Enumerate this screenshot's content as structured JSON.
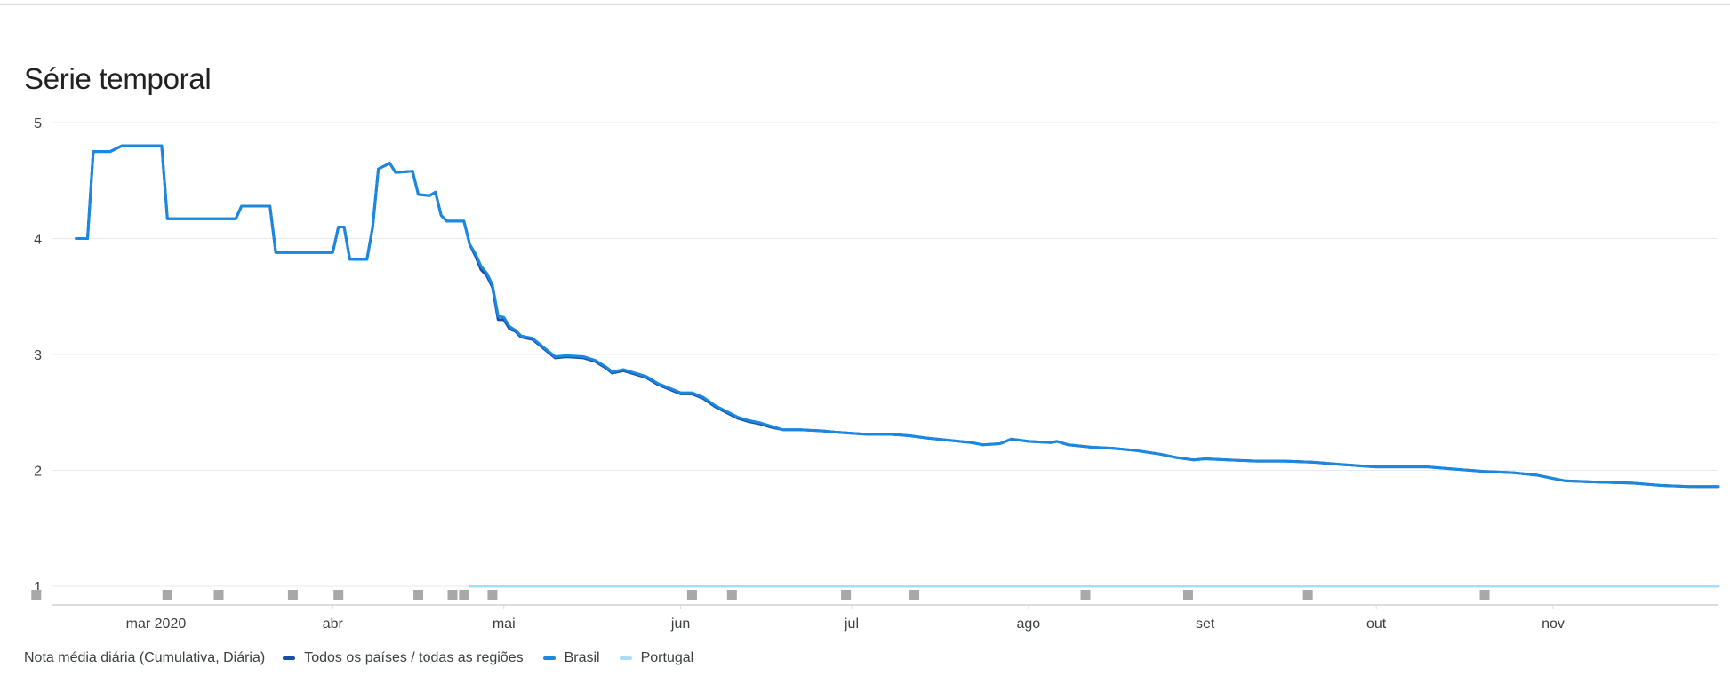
{
  "header": {
    "title": "Série temporal"
  },
  "legend": {
    "metric_label": "Nota média diária (Cumulativa, Diária)",
    "items": [
      {
        "label": "Todos os países / todas as regiões",
        "color": "#174ea6"
      },
      {
        "label": "Brasil",
        "color": "#1a88e0"
      },
      {
        "label": "Portugal",
        "color": "#aadcf3"
      }
    ]
  },
  "chart_data": {
    "type": "line",
    "title": "Série temporal",
    "xlabel": "",
    "ylabel": "",
    "x_range": [
      "2020-02-12",
      "2020-11-30"
    ],
    "ylim": [
      1,
      5
    ],
    "yticks": [
      1,
      2,
      3,
      4,
      5
    ],
    "xtick_labels": [
      {
        "date": "2020-03-01",
        "label": "mar 2020"
      },
      {
        "date": "2020-04-01",
        "label": "abr"
      },
      {
        "date": "2020-05-01",
        "label": "mai"
      },
      {
        "date": "2020-06-01",
        "label": "jun"
      },
      {
        "date": "2020-07-01",
        "label": "jul"
      },
      {
        "date": "2020-08-01",
        "label": "ago"
      },
      {
        "date": "2020-09-01",
        "label": "set"
      },
      {
        "date": "2020-10-01",
        "label": "out"
      },
      {
        "date": "2020-11-01",
        "label": "nov"
      }
    ],
    "grid": true,
    "legend_position": "bottom-left",
    "series": [
      {
        "name": "Todos os países / todas as regiões",
        "color": "#174ea6",
        "points": [
          [
            "2020-02-16",
            4.0
          ],
          [
            "2020-02-18",
            4.0
          ],
          [
            "2020-02-19",
            4.75
          ],
          [
            "2020-02-22",
            4.75
          ],
          [
            "2020-02-24",
            4.8
          ],
          [
            "2020-03-02",
            4.8
          ],
          [
            "2020-03-03",
            4.17
          ],
          [
            "2020-03-15",
            4.17
          ],
          [
            "2020-03-16",
            4.28
          ],
          [
            "2020-03-21",
            4.28
          ],
          [
            "2020-03-22",
            3.88
          ],
          [
            "2020-04-01",
            3.88
          ],
          [
            "2020-04-02",
            4.1
          ],
          [
            "2020-04-03",
            4.1
          ],
          [
            "2020-04-04",
            3.82
          ],
          [
            "2020-04-07",
            3.82
          ],
          [
            "2020-04-08",
            4.1
          ],
          [
            "2020-04-09",
            4.6
          ],
          [
            "2020-04-11",
            4.65
          ],
          [
            "2020-04-12",
            4.57
          ],
          [
            "2020-04-15",
            4.58
          ],
          [
            "2020-04-16",
            4.38
          ],
          [
            "2020-04-18",
            4.37
          ],
          [
            "2020-04-19",
            4.4
          ],
          [
            "2020-04-20",
            4.2
          ],
          [
            "2020-04-21",
            4.15
          ],
          [
            "2020-04-24",
            4.15
          ],
          [
            "2020-04-25",
            3.95
          ],
          [
            "2020-04-26",
            3.85
          ],
          [
            "2020-04-27",
            3.73
          ],
          [
            "2020-04-28",
            3.68
          ],
          [
            "2020-04-29",
            3.58
          ],
          [
            "2020-04-30",
            3.3
          ],
          [
            "2020-05-01",
            3.3
          ],
          [
            "2020-05-02",
            3.22
          ],
          [
            "2020-05-03",
            3.2
          ],
          [
            "2020-05-04",
            3.15
          ],
          [
            "2020-05-06",
            3.13
          ],
          [
            "2020-05-08",
            3.05
          ],
          [
            "2020-05-10",
            2.97
          ],
          [
            "2020-05-12",
            2.98
          ],
          [
            "2020-05-15",
            2.97
          ],
          [
            "2020-05-17",
            2.94
          ],
          [
            "2020-05-19",
            2.88
          ],
          [
            "2020-05-20",
            2.84
          ],
          [
            "2020-05-22",
            2.86
          ],
          [
            "2020-05-24",
            2.83
          ],
          [
            "2020-05-26",
            2.8
          ],
          [
            "2020-05-28",
            2.74
          ],
          [
            "2020-05-30",
            2.7
          ],
          [
            "2020-06-01",
            2.66
          ],
          [
            "2020-06-03",
            2.66
          ],
          [
            "2020-06-05",
            2.62
          ],
          [
            "2020-06-07",
            2.55
          ],
          [
            "2020-06-09",
            2.5
          ],
          [
            "2020-06-11",
            2.45
          ],
          [
            "2020-06-13",
            2.42
          ],
          [
            "2020-06-15",
            2.4
          ],
          [
            "2020-06-17",
            2.37
          ],
          [
            "2020-06-19",
            2.35
          ],
          [
            "2020-06-22",
            2.35
          ],
          [
            "2020-06-26",
            2.34
          ],
          [
            "2020-06-28",
            2.33
          ],
          [
            "2020-07-01",
            2.32
          ],
          [
            "2020-07-04",
            2.31
          ],
          [
            "2020-07-08",
            2.31
          ],
          [
            "2020-07-11",
            2.3
          ],
          [
            "2020-07-14",
            2.28
          ],
          [
            "2020-07-18",
            2.26
          ],
          [
            "2020-07-22",
            2.24
          ],
          [
            "2020-07-24",
            2.22
          ],
          [
            "2020-07-27",
            2.23
          ],
          [
            "2020-07-29",
            2.27
          ],
          [
            "2020-08-01",
            2.25
          ],
          [
            "2020-08-05",
            2.24
          ],
          [
            "2020-08-06",
            2.25
          ],
          [
            "2020-08-08",
            2.22
          ],
          [
            "2020-08-12",
            2.2
          ],
          [
            "2020-08-16",
            2.19
          ],
          [
            "2020-08-20",
            2.17
          ],
          [
            "2020-08-24",
            2.14
          ],
          [
            "2020-08-27",
            2.11
          ],
          [
            "2020-08-30",
            2.09
          ],
          [
            "2020-09-01",
            2.1
          ],
          [
            "2020-09-05",
            2.09
          ],
          [
            "2020-09-10",
            2.08
          ],
          [
            "2020-09-15",
            2.08
          ],
          [
            "2020-09-20",
            2.07
          ],
          [
            "2020-09-25",
            2.05
          ],
          [
            "2020-10-01",
            2.03
          ],
          [
            "2020-10-05",
            2.03
          ],
          [
            "2020-10-10",
            2.03
          ],
          [
            "2020-10-15",
            2.01
          ],
          [
            "2020-10-20",
            1.99
          ],
          [
            "2020-10-25",
            1.98
          ],
          [
            "2020-10-29",
            1.96
          ],
          [
            "2020-11-01",
            1.93
          ],
          [
            "2020-11-03",
            1.91
          ],
          [
            "2020-11-08",
            1.9
          ],
          [
            "2020-11-15",
            1.89
          ],
          [
            "2020-11-20",
            1.87
          ],
          [
            "2020-11-25",
            1.86
          ],
          [
            "2020-11-30",
            1.86
          ]
        ]
      },
      {
        "name": "Brasil",
        "color": "#1a88e0",
        "points": [
          [
            "2020-02-16",
            4.0
          ],
          [
            "2020-02-18",
            4.0
          ],
          [
            "2020-02-19",
            4.75
          ],
          [
            "2020-02-22",
            4.75
          ],
          [
            "2020-02-24",
            4.8
          ],
          [
            "2020-03-02",
            4.8
          ],
          [
            "2020-03-03",
            4.17
          ],
          [
            "2020-03-15",
            4.17
          ],
          [
            "2020-03-16",
            4.28
          ],
          [
            "2020-03-21",
            4.28
          ],
          [
            "2020-03-22",
            3.88
          ],
          [
            "2020-04-01",
            3.88
          ],
          [
            "2020-04-02",
            4.1
          ],
          [
            "2020-04-03",
            4.1
          ],
          [
            "2020-04-04",
            3.82
          ],
          [
            "2020-04-07",
            3.82
          ],
          [
            "2020-04-08",
            4.1
          ],
          [
            "2020-04-09",
            4.6
          ],
          [
            "2020-04-11",
            4.65
          ],
          [
            "2020-04-12",
            4.57
          ],
          [
            "2020-04-15",
            4.58
          ],
          [
            "2020-04-16",
            4.38
          ],
          [
            "2020-04-18",
            4.37
          ],
          [
            "2020-04-19",
            4.4
          ],
          [
            "2020-04-20",
            4.2
          ],
          [
            "2020-04-21",
            4.15
          ],
          [
            "2020-04-24",
            4.15
          ],
          [
            "2020-04-25",
            3.95
          ],
          [
            "2020-04-26",
            3.87
          ],
          [
            "2020-04-27",
            3.76
          ],
          [
            "2020-04-28",
            3.7
          ],
          [
            "2020-04-29",
            3.6
          ],
          [
            "2020-04-30",
            3.33
          ],
          [
            "2020-05-01",
            3.32
          ],
          [
            "2020-05-02",
            3.24
          ],
          [
            "2020-05-03",
            3.21
          ],
          [
            "2020-05-04",
            3.16
          ],
          [
            "2020-05-06",
            3.14
          ],
          [
            "2020-05-08",
            3.06
          ],
          [
            "2020-05-10",
            2.98
          ],
          [
            "2020-05-12",
            2.99
          ],
          [
            "2020-05-15",
            2.98
          ],
          [
            "2020-05-17",
            2.95
          ],
          [
            "2020-05-19",
            2.89
          ],
          [
            "2020-05-20",
            2.85
          ],
          [
            "2020-05-22",
            2.87
          ],
          [
            "2020-05-24",
            2.84
          ],
          [
            "2020-05-26",
            2.81
          ],
          [
            "2020-05-28",
            2.75
          ],
          [
            "2020-05-30",
            2.71
          ],
          [
            "2020-06-01",
            2.67
          ],
          [
            "2020-06-03",
            2.67
          ],
          [
            "2020-06-05",
            2.63
          ],
          [
            "2020-06-07",
            2.56
          ],
          [
            "2020-06-09",
            2.51
          ],
          [
            "2020-06-11",
            2.46
          ],
          [
            "2020-06-13",
            2.43
          ],
          [
            "2020-06-15",
            2.41
          ],
          [
            "2020-06-17",
            2.38
          ],
          [
            "2020-06-19",
            2.35
          ],
          [
            "2020-06-22",
            2.35
          ],
          [
            "2020-06-26",
            2.34
          ],
          [
            "2020-06-28",
            2.33
          ],
          [
            "2020-07-01",
            2.32
          ],
          [
            "2020-07-04",
            2.31
          ],
          [
            "2020-07-08",
            2.31
          ],
          [
            "2020-07-11",
            2.3
          ],
          [
            "2020-07-14",
            2.28
          ],
          [
            "2020-07-18",
            2.26
          ],
          [
            "2020-07-22",
            2.24
          ],
          [
            "2020-07-24",
            2.22
          ],
          [
            "2020-07-27",
            2.23
          ],
          [
            "2020-07-29",
            2.27
          ],
          [
            "2020-08-01",
            2.25
          ],
          [
            "2020-08-05",
            2.24
          ],
          [
            "2020-08-06",
            2.25
          ],
          [
            "2020-08-08",
            2.22
          ],
          [
            "2020-08-12",
            2.2
          ],
          [
            "2020-08-16",
            2.19
          ],
          [
            "2020-08-20",
            2.17
          ],
          [
            "2020-08-24",
            2.14
          ],
          [
            "2020-08-27",
            2.11
          ],
          [
            "2020-08-30",
            2.09
          ],
          [
            "2020-09-01",
            2.1
          ],
          [
            "2020-09-05",
            2.09
          ],
          [
            "2020-09-10",
            2.08
          ],
          [
            "2020-09-15",
            2.08
          ],
          [
            "2020-09-20",
            2.07
          ],
          [
            "2020-09-25",
            2.05
          ],
          [
            "2020-10-01",
            2.03
          ],
          [
            "2020-10-05",
            2.03
          ],
          [
            "2020-10-10",
            2.03
          ],
          [
            "2020-10-15",
            2.01
          ],
          [
            "2020-10-20",
            1.99
          ],
          [
            "2020-10-25",
            1.98
          ],
          [
            "2020-10-29",
            1.96
          ],
          [
            "2020-11-01",
            1.93
          ],
          [
            "2020-11-03",
            1.91
          ],
          [
            "2020-11-08",
            1.9
          ],
          [
            "2020-11-15",
            1.89
          ],
          [
            "2020-11-20",
            1.87
          ],
          [
            "2020-11-25",
            1.86
          ],
          [
            "2020-11-30",
            1.86
          ]
        ]
      },
      {
        "name": "Portugal",
        "color": "#aadcf3",
        "points": [
          [
            "2020-04-25",
            1.0
          ],
          [
            "2020-11-30",
            1.0
          ]
        ]
      }
    ],
    "annotation_marker_dates": [
      "2020-02-09",
      "2020-03-03",
      "2020-03-12",
      "2020-03-25",
      "2020-04-02",
      "2020-04-16",
      "2020-04-22",
      "2020-04-24",
      "2020-04-29",
      "2020-06-03",
      "2020-06-10",
      "2020-06-30",
      "2020-07-12",
      "2020-08-11",
      "2020-08-29",
      "2020-09-19",
      "2020-10-20"
    ],
    "annotation_marker_color": "#a8a8a8"
  }
}
